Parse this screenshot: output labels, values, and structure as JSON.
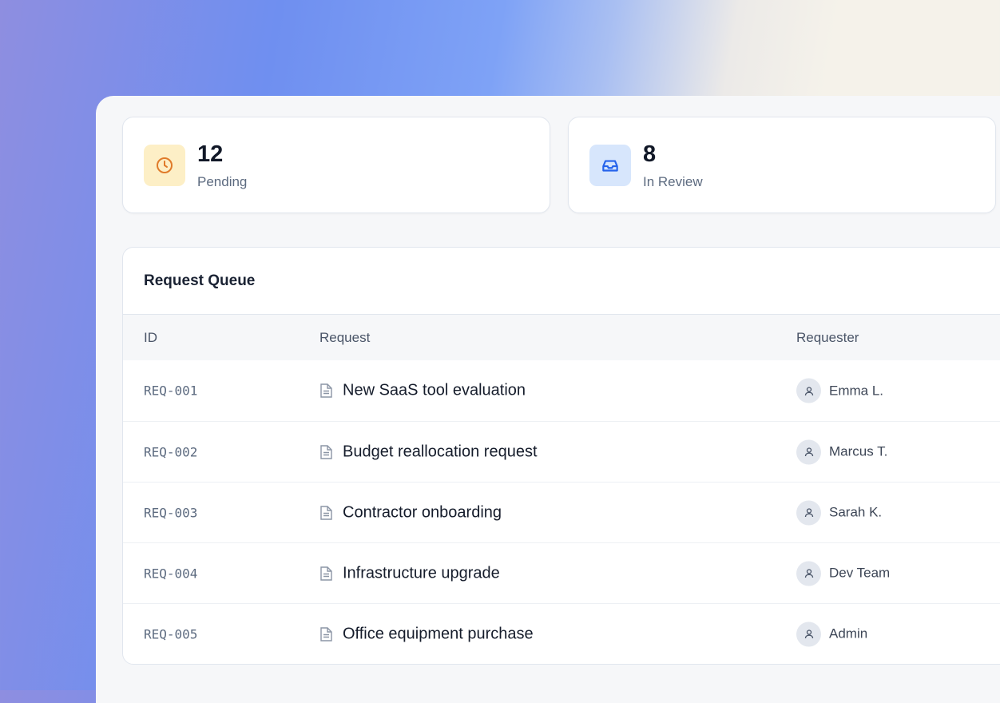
{
  "stats": [
    {
      "value": "12",
      "label": "Pending",
      "icon": "clock-icon",
      "color": "#e07b2a",
      "bg": "#fdefc6"
    },
    {
      "value": "8",
      "label": "In Review",
      "icon": "inbox-icon",
      "color": "#2563eb",
      "bg": "#d7e6fc"
    }
  ],
  "queue": {
    "title": "Request Queue",
    "columns": [
      "ID",
      "Request",
      "Requester"
    ],
    "rows": [
      {
        "id": "REQ-001",
        "request": "New SaaS tool evaluation",
        "requester": "Emma L."
      },
      {
        "id": "REQ-002",
        "request": "Budget reallocation request",
        "requester": "Marcus T."
      },
      {
        "id": "REQ-003",
        "request": "Contractor onboarding",
        "requester": "Sarah K."
      },
      {
        "id": "REQ-004",
        "request": "Infrastructure upgrade",
        "requester": "Dev Team"
      },
      {
        "id": "REQ-005",
        "request": "Office equipment purchase",
        "requester": "Admin"
      }
    ]
  }
}
